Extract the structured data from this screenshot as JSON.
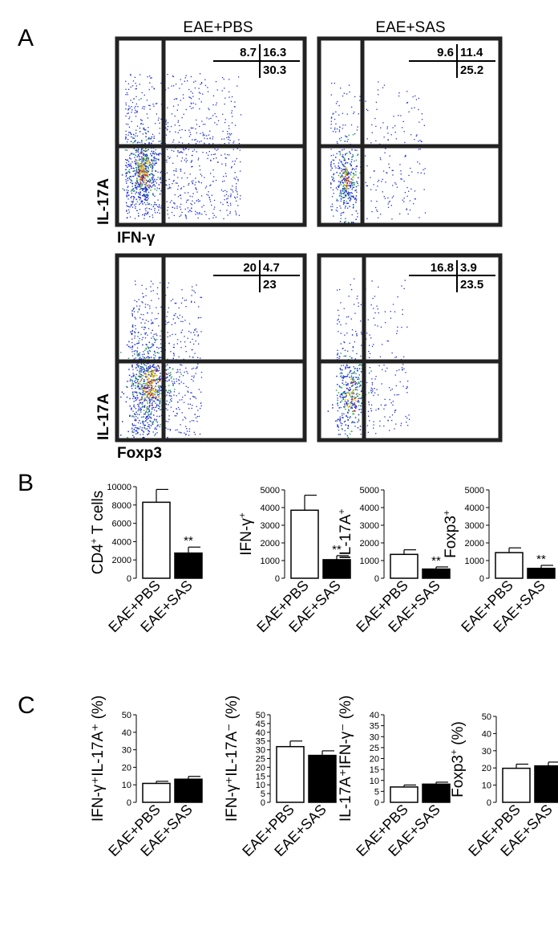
{
  "panels": {
    "A": "A",
    "B": "B",
    "C": "C"
  },
  "flow": {
    "columns": [
      "EAE+PBS",
      "EAE+SAS"
    ],
    "rows": [
      {
        "y_label": "IL-17A",
        "x_label": "IFN-γ"
      },
      {
        "y_label": "IL-17A",
        "x_label": "Foxp3"
      }
    ],
    "plots": [
      {
        "q_ul": "8.7",
        "q_ur": "16.3",
        "q_lr": "30.3"
      },
      {
        "q_ul": "9.6",
        "q_ur": "11.4",
        "q_lr": "25.2"
      },
      {
        "q_ul": "20",
        "q_ur": "4.7",
        "q_lr": "23"
      },
      {
        "q_ul": "16.8",
        "q_ur": "3.9",
        "q_lr": "23.5"
      }
    ],
    "colors": {
      "low": "#1f2fd6",
      "mid": "#22b24a",
      "high": "#f2c21b",
      "peak": "#d82020"
    }
  },
  "chart_data": [
    {
      "type": "bar",
      "panel": "B",
      "categories": [
        "EAE+PBS",
        "EAE+SAS"
      ],
      "ylabel_main": "CD4",
      "ylabel_sup": "+",
      "ylabel_rest": " T cells",
      "ylim": [
        0,
        10000
      ],
      "ticks": [
        "0",
        "2000",
        "4000",
        "6000",
        "8000",
        "10000"
      ],
      "values": [
        8300,
        2750
      ],
      "errors": [
        1400,
        650
      ],
      "significance": [
        "",
        "**"
      ],
      "fill": [
        "#ffffff",
        "#000000"
      ]
    },
    {
      "type": "bar",
      "panel": "B",
      "categories": [
        "EAE+PBS",
        "EAE+SAS"
      ],
      "ylabel_main": "IFN-γ",
      "ylabel_sup": "+",
      "ylabel_rest": "",
      "ylim": [
        0,
        5000
      ],
      "ticks": [
        "0",
        "1000",
        "2000",
        "3000",
        "4000",
        "5000"
      ],
      "values": [
        3850,
        1050
      ],
      "errors": [
        850,
        230
      ],
      "significance": [
        "",
        "**"
      ],
      "fill": [
        "#ffffff",
        "#000000"
      ]
    },
    {
      "type": "bar",
      "panel": "B",
      "categories": [
        "EAE+PBS",
        "EAE+SAS"
      ],
      "ylabel_main": "IL-17A",
      "ylabel_sup": "+",
      "ylabel_rest": "",
      "ylim": [
        0,
        5000
      ],
      "ticks": [
        "0",
        "1000",
        "2000",
        "3000",
        "4000",
        "5000"
      ],
      "values": [
        1350,
        520
      ],
      "errors": [
        260,
        120
      ],
      "significance": [
        "",
        "**"
      ],
      "fill": [
        "#ffffff",
        "#000000"
      ]
    },
    {
      "type": "bar",
      "panel": "B",
      "categories": [
        "EAE+PBS",
        "EAE+SAS"
      ],
      "ylabel_main": "Foxp3",
      "ylabel_sup": "+",
      "ylabel_rest": "",
      "ylim": [
        0,
        5000
      ],
      "ticks": [
        "0",
        "1000",
        "2000",
        "3000",
        "4000",
        "5000"
      ],
      "values": [
        1450,
        560
      ],
      "errors": [
        270,
        170
      ],
      "significance": [
        "",
        "**"
      ],
      "fill": [
        "#ffffff",
        "#000000"
      ]
    },
    {
      "type": "bar",
      "panel": "C",
      "categories": [
        "EAE+PBS",
        "EAE+SAS"
      ],
      "ylabel_main": "IFN-γ⁺IL-17A⁺ (%)",
      "ylabel_sup": "",
      "ylabel_rest": "",
      "ylim": [
        0,
        50
      ],
      "ticks": [
        "0",
        "10",
        "20",
        "30",
        "40",
        "50"
      ],
      "values": [
        10.8,
        13.2
      ],
      "errors": [
        1.2,
        1.6
      ],
      "significance": [
        "",
        ""
      ],
      "fill": [
        "#ffffff",
        "#000000"
      ]
    },
    {
      "type": "bar",
      "panel": "C",
      "categories": [
        "EAE+PBS",
        "EAE+SAS"
      ],
      "ylabel_main": "IFN-γ⁺IL-17A⁻ (%)",
      "ylabel_sup": "",
      "ylabel_rest": "",
      "ylim": [
        0,
        50
      ],
      "ticks": [
        "0",
        "5",
        "10",
        "15",
        "20",
        "25",
        "30",
        "35",
        "40",
        "45",
        "50"
      ],
      "values": [
        31.8,
        26.8
      ],
      "errors": [
        3.2,
        2.6
      ],
      "significance": [
        "",
        ""
      ],
      "fill": [
        "#ffffff",
        "#000000"
      ]
    },
    {
      "type": "bar",
      "panel": "C",
      "categories": [
        "EAE+PBS",
        "EAE+SAS"
      ],
      "ylabel_main": "IL-17A⁺IFN-γ⁻ (%)",
      "ylabel_sup": "",
      "ylabel_rest": "",
      "ylim": [
        0,
        40
      ],
      "ticks": [
        "0",
        "5",
        "10",
        "15",
        "20",
        "25",
        "30",
        "35",
        "40"
      ],
      "values": [
        7.0,
        8.3
      ],
      "errors": [
        0.9,
        0.9
      ],
      "significance": [
        "",
        ""
      ],
      "fill": [
        "#ffffff",
        "#000000"
      ]
    },
    {
      "type": "bar",
      "panel": "C",
      "categories": [
        "EAE+PBS",
        "EAE+SAS"
      ],
      "ylabel_main": "Foxp3",
      "ylabel_sup": "+",
      "ylabel_rest": " (%)",
      "ylim": [
        0,
        50
      ],
      "ticks": [
        "0",
        "10",
        "20",
        "30",
        "40",
        "50"
      ],
      "values": [
        19.8,
        21.2
      ],
      "errors": [
        2.4,
        2.2
      ],
      "significance": [
        "",
        ""
      ],
      "fill": [
        "#ffffff",
        "#000000"
      ]
    }
  ]
}
